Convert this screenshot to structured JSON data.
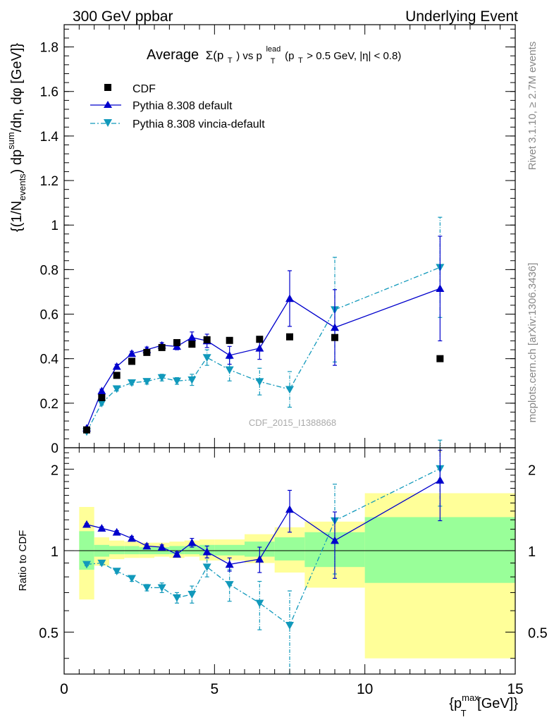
{
  "header": {
    "left_label": "300 GeV ppbar",
    "right_label": "Underlying Event"
  },
  "side_labels": {
    "rivet": "Rivet 3.1.10, ≥ 2.7M events",
    "mcplots": "mcplots.cern.ch [arXiv:1306.3436]"
  },
  "watermark": "CDF_2015_I1388868",
  "colors": {
    "cdf": "#000000",
    "pythia_default": "#0000cc",
    "pythia_vincia": "#1199bb",
    "band_outer": "#ffff99",
    "band_inner": "#99ff99"
  },
  "chart_data": [
    {
      "type": "scatter",
      "panel": "main",
      "title": "Average Σ(p_T) vs p_T^lead (p_T > 0.5 GeV, |η| < 0.8)",
      "title_parts": {
        "average": "Average",
        "sigma": "Σ(p",
        "sub_T": "T",
        "vs": ") vs p",
        "sup_lead": "lead",
        "cut_open": " (p",
        "cut_rest": " > 0.5 GeV, |η| < 0.8)"
      },
      "ylabel": "{(1/N_events) dp_T^sum/dη, dφ [GeV]}",
      "ylabel_parts": {
        "a": "{(1/N",
        "sub_events": "events",
        "b": ") dp",
        "sup_sum": "sum",
        "c": "/dη, dφ [GeV]}"
      },
      "xlim": [
        0,
        15
      ],
      "ylim": [
        0,
        1.9
      ],
      "yticks": [
        0,
        0.2,
        0.4,
        0.6,
        0.8,
        1,
        1.2,
        1.4,
        1.6,
        1.8
      ],
      "ytick_labels": [
        "0",
        "0.2",
        "0.4",
        "0.6",
        "0.8",
        "1",
        "1.2",
        "1.4",
        "1.6",
        "1.8"
      ],
      "legend_position": "top-left",
      "series": [
        {
          "name": "CDF",
          "style": "square-markers",
          "x": [
            0.75,
            1.25,
            1.75,
            2.25,
            2.75,
            3.25,
            3.75,
            4.25,
            4.75,
            5.5,
            6.5,
            7.5,
            9.0,
            12.5
          ],
          "y": [
            0.08,
            0.225,
            0.325,
            0.388,
            0.428,
            0.45,
            0.472,
            0.465,
            0.485,
            0.482,
            0.487,
            0.498,
            0.495,
            0.4
          ],
          "err": [
            0,
            0,
            0,
            0,
            0,
            0,
            0,
            0,
            0,
            0,
            0,
            0,
            0,
            0
          ]
        },
        {
          "name": "Pythia 8.308 default",
          "style": "solid-line-up-triangles",
          "x": [
            0.75,
            1.25,
            1.75,
            2.25,
            2.75,
            3.25,
            3.75,
            4.25,
            4.75,
            5.5,
            6.5,
            7.5,
            9.0,
            12.5
          ],
          "y": [
            0.088,
            0.255,
            0.365,
            0.423,
            0.44,
            0.46,
            0.455,
            0.495,
            0.48,
            0.415,
            0.447,
            0.67,
            0.54,
            0.715
          ],
          "err": [
            0.005,
            0.008,
            0.01,
            0.01,
            0.012,
            0.012,
            0.015,
            0.025,
            0.03,
            0.04,
            0.05,
            0.125,
            0.17,
            0.235
          ]
        },
        {
          "name": "Pythia 8.308 vincia-default",
          "style": "dashdot-line-down-triangles",
          "x": [
            0.75,
            1.25,
            1.75,
            2.25,
            2.75,
            3.25,
            3.75,
            4.25,
            4.75,
            5.5,
            6.5,
            7.5,
            9.0,
            12.5
          ],
          "y": [
            0.072,
            0.2,
            0.265,
            0.292,
            0.298,
            0.315,
            0.3,
            0.305,
            0.405,
            0.35,
            0.297,
            0.262,
            0.62,
            0.81
          ],
          "err": [
            0.004,
            0.008,
            0.01,
            0.01,
            0.012,
            0.015,
            0.015,
            0.025,
            0.035,
            0.05,
            0.06,
            0.08,
            0.235,
            0.225
          ]
        }
      ]
    },
    {
      "type": "scatter",
      "panel": "ratio",
      "ylabel": "Ratio to CDF",
      "xlabel": "{p_T^max [GeV]}",
      "xlabel_parts": {
        "a": "{p",
        "sup_max": "max",
        "sub_T": "T",
        "b": " [GeV]}"
      },
      "xlim": [
        0,
        15
      ],
      "ylim": [
        0.35,
        2.4
      ],
      "log_scale_y": true,
      "xticks": [
        0,
        5,
        10,
        15
      ],
      "xtick_labels": [
        "0",
        "5",
        "10",
        "15"
      ],
      "yticks": [
        0.5,
        1,
        2
      ],
      "ytick_labels": [
        "0.5",
        "1",
        "2"
      ],
      "bands": {
        "bin_edges": [
          0.5,
          1.0,
          1.5,
          2.0,
          2.5,
          3.0,
          3.5,
          4.0,
          4.5,
          5.0,
          6.0,
          7.0,
          8.0,
          10.0,
          15.0
        ],
        "outer_low": [
          0.66,
          0.88,
          0.93,
          0.94,
          0.94,
          0.95,
          0.94,
          0.95,
          0.92,
          0.92,
          0.9,
          0.83,
          0.73,
          0.4
        ],
        "outer_high": [
          1.45,
          1.12,
          1.09,
          1.08,
          1.07,
          1.07,
          1.08,
          1.09,
          1.1,
          1.1,
          1.15,
          1.22,
          1.28,
          1.63
        ],
        "inner_low": [
          0.85,
          0.95,
          0.97,
          0.97,
          0.97,
          0.97,
          0.97,
          0.97,
          0.96,
          0.96,
          0.95,
          0.92,
          0.87,
          0.76
        ],
        "inner_high": [
          1.18,
          1.05,
          1.04,
          1.04,
          1.03,
          1.03,
          1.04,
          1.04,
          1.05,
          1.05,
          1.08,
          1.12,
          1.17,
          1.33
        ]
      },
      "series": [
        {
          "name": "Pythia 8.308 default",
          "x": [
            0.75,
            1.25,
            1.75,
            2.25,
            2.75,
            3.25,
            3.75,
            4.25,
            4.75,
            5.5,
            6.5,
            7.5,
            9.0,
            12.5
          ],
          "y": [
            1.25,
            1.21,
            1.17,
            1.11,
            1.04,
            1.03,
            0.97,
            1.07,
            0.99,
            0.89,
            0.93,
            1.42,
            1.09,
            1.82
          ],
          "err": [
            0.01,
            0.015,
            0.015,
            0.02,
            0.02,
            0.02,
            0.02,
            0.04,
            0.05,
            0.05,
            0.1,
            0.25,
            0.3,
            0.53
          ]
        },
        {
          "name": "Pythia 8.308 vincia-default",
          "x": [
            0.75,
            1.25,
            1.75,
            2.25,
            2.75,
            3.25,
            3.75,
            4.25,
            4.75,
            5.5,
            6.5,
            7.5,
            9.0,
            12.5
          ],
          "y": [
            0.89,
            0.9,
            0.84,
            0.79,
            0.73,
            0.73,
            0.67,
            0.69,
            0.87,
            0.75,
            0.64,
            0.53,
            1.29,
            2.01
          ],
          "err": [
            0.01,
            0.015,
            0.015,
            0.02,
            0.02,
            0.03,
            0.03,
            0.05,
            0.07,
            0.1,
            0.13,
            0.18,
            0.47,
            0.55
          ]
        }
      ]
    }
  ]
}
